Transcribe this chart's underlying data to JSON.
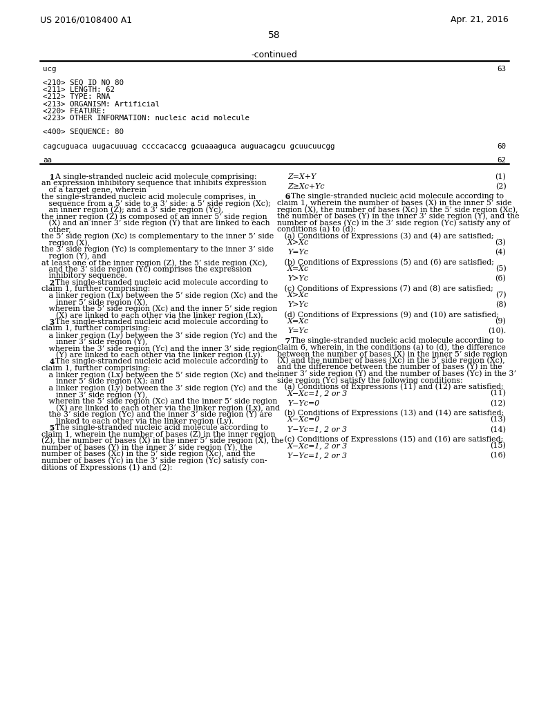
{
  "header_left": "US 2016/0108400 A1",
  "header_right": "Apr. 21, 2016",
  "page_number": "58",
  "continued_label": "-continued",
  "bg_color": "#ffffff",
  "seq_block": [
    [
      "ucg",
      "63"
    ],
    [
      "",
      ""
    ],
    [
      "<210> SEQ ID NO 80",
      ""
    ],
    [
      "<211> LENGTH: 62",
      ""
    ],
    [
      "<212> TYPE: RNA",
      ""
    ],
    [
      "<213> ORGANISM: Artificial",
      ""
    ],
    [
      "<220> FEATURE:",
      ""
    ],
    [
      "<223> OTHER INFORMATION: nucleic acid molecule",
      ""
    ],
    [
      "",
      ""
    ],
    [
      "<400> SEQUENCE: 80",
      ""
    ],
    [
      "",
      ""
    ],
    [
      "cagcuguaca uugacuuuag ccccacaccg gcuaaaguca auguacagcu gcuucuucgg",
      "60"
    ],
    [
      "",
      ""
    ],
    [
      "aa",
      "62"
    ]
  ],
  "left_col": [
    {
      "t": "   1. A single-stranded nucleic acid molecule comprising:",
      "b": true,
      "bn": 4
    },
    {
      "t": "an expression inhibitory sequence that inhibits expression",
      "b": false,
      "ind": 1
    },
    {
      "t": "   of a target gene, wherein",
      "b": false,
      "ind": 1
    },
    {
      "t": "the single-stranded nucleic acid molecule comprises, in",
      "b": false,
      "ind": 0
    },
    {
      "t": "   sequence from a 5’ side to a 3’ side: a 5’ side region (Xc);",
      "b": false,
      "ind": 1
    },
    {
      "t": "   an inner region (Z); and a 3’ side region (Yc),",
      "b": false,
      "ind": 1
    },
    {
      "t": "the inner region (Z) is composed of an inner 5’ side region",
      "b": false,
      "ind": 0
    },
    {
      "t": "   (X) and an inner 3’ side region (Y) that are linked to each",
      "b": false,
      "ind": 1
    },
    {
      "t": "   other,",
      "b": false,
      "ind": 1
    },
    {
      "t": "the 5’ side region (Xc) is complementary to the inner 5’ side",
      "b": false,
      "ind": 0
    },
    {
      "t": "   region (X),",
      "b": false,
      "ind": 1
    },
    {
      "t": "the 3’ side region (Yc) is complementary to the inner 3’ side",
      "b": false,
      "ind": 0
    },
    {
      "t": "   region (Y), and",
      "b": false,
      "ind": 1
    },
    {
      "t": "at least one of the inner region (Z), the 5’ side region (Xc),",
      "b": false,
      "ind": 0
    },
    {
      "t": "   and the 3’ side region (Yc) comprises the expression",
      "b": false,
      "ind": 1
    },
    {
      "t": "   inhibitory sequence.",
      "b": false,
      "ind": 1
    },
    {
      "t": "   2. The single-stranded nucleic acid molecule according to",
      "b": true,
      "bn": 4
    },
    {
      "t": "claim 1, further comprising:",
      "b": false,
      "ind": 0
    },
    {
      "t": "   a linker region (Lx) between the 5’ side region (Xc) and the",
      "b": false,
      "ind": 1
    },
    {
      "t": "      inner 5’ side region (X),",
      "b": false,
      "ind": 2
    },
    {
      "t": "   wherein the 5’ side region (Xc) and the inner 5’ side region",
      "b": false,
      "ind": 1
    },
    {
      "t": "      (X) are linked to each other via the linker region (Lx).",
      "b": false,
      "ind": 2
    },
    {
      "t": "   3. The single-stranded nucleic acid molecule according to",
      "b": true,
      "bn": 4
    },
    {
      "t": "claim 1, further comprising:",
      "b": false,
      "ind": 0
    },
    {
      "t": "   a linker region (Ly) between the 3’ side region (Yc) and the",
      "b": false,
      "ind": 1
    },
    {
      "t": "      inner 3’ side region (Y),",
      "b": false,
      "ind": 2
    },
    {
      "t": "   wherein the 3’ side region (Yc) and the inner 3’ side region",
      "b": false,
      "ind": 1
    },
    {
      "t": "      (Y) are linked to each other via the linker region (Ly).",
      "b": false,
      "ind": 2
    },
    {
      "t": "   4. The single-stranded nucleic acid molecule according to",
      "b": true,
      "bn": 4
    },
    {
      "t": "claim 1, further comprising:",
      "b": false,
      "ind": 0
    },
    {
      "t": "   a linker region (Lx) between the 5’ side region (Xc) and the",
      "b": false,
      "ind": 1
    },
    {
      "t": "      inner 5’ side region (X); and",
      "b": false,
      "ind": 2
    },
    {
      "t": "   a linker region (Ly) between the 3’ side region (Yc) and the",
      "b": false,
      "ind": 1
    },
    {
      "t": "      inner 3’ side region (Y),",
      "b": false,
      "ind": 2
    },
    {
      "t": "   wherein the 5’ side region (Xc) and the inner 5’ side region",
      "b": false,
      "ind": 1
    },
    {
      "t": "      (X) are linked to each other via the linker region (Lx), and",
      "b": false,
      "ind": 2
    },
    {
      "t": "   the 3’ side region (Yc) and the inner 3’ side region (Y) are",
      "b": false,
      "ind": 1
    },
    {
      "t": "      linked to each other via the linker region (Ly).",
      "b": false,
      "ind": 2
    },
    {
      "t": "   5. The single-stranded nucleic acid molecule according to",
      "b": true,
      "bn": 4
    },
    {
      "t": "claim 1, wherein the number of bases (Z) in the inner region",
      "b": false,
      "ind": 0
    },
    {
      "t": "(Z), the number of bases (X) in the inner 5’ side region (X), the",
      "b": false,
      "ind": 0
    },
    {
      "t": "number of bases (Y) in the inner 3’ side region (Y), the",
      "b": false,
      "ind": 0
    },
    {
      "t": "number of bases (Xc) in the 5’ side region (Xc), and the",
      "b": false,
      "ind": 0
    },
    {
      "t": "number of bases (Yc) in the 3’ side region (Yc) satisfy con-",
      "b": false,
      "ind": 0
    },
    {
      "t": "ditions of Expressions (1) and (2):",
      "b": false,
      "ind": 0
    }
  ],
  "right_col": [
    {
      "t": "Z=X+Y",
      "eq": true,
      "num": "(1)",
      "gap_after": true
    },
    {
      "t": "Z≥Xc+Yc",
      "eq": true,
      "num": "(2)",
      "gap_after": true
    },
    {
      "t": "   6. The single-stranded nucleic acid molecule according to",
      "eq": false,
      "num": "",
      "gap_after": false,
      "b": true,
      "bn": 4
    },
    {
      "t": "claim 1, wherein the number of bases (X) in the inner 5’ side",
      "eq": false,
      "num": "",
      "gap_after": false
    },
    {
      "t": "region (X), the number of bases (Xc) in the 5’ side region (Xc),",
      "eq": false,
      "num": "",
      "gap_after": false
    },
    {
      "t": "the number of bases (Y) in the inner 3’ side region (Y), and the",
      "eq": false,
      "num": "",
      "gap_after": false
    },
    {
      "t": "number of bases (Yc) in the 3’ side region (Yc) satisfy any of",
      "eq": false,
      "num": "",
      "gap_after": false
    },
    {
      "t": "conditions (a) to (d):",
      "eq": false,
      "num": "",
      "gap_after": false
    },
    {
      "t": "   (a) Conditions of Expressions (3) and (4) are satisfied;",
      "eq": false,
      "num": "",
      "gap_after": false
    },
    {
      "t": "X>Xc",
      "eq": true,
      "num": "(3)",
      "gap_after": true
    },
    {
      "t": "Y=Yc",
      "eq": true,
      "num": "(4)",
      "gap_after": true
    },
    {
      "t": "   (b) Conditions of Expressions (5) and (6) are satisfied;",
      "eq": false,
      "num": "",
      "gap_after": false
    },
    {
      "t": "X=Xc",
      "eq": true,
      "num": "(5)",
      "gap_after": true
    },
    {
      "t": "Y>Yc",
      "eq": true,
      "num": "(6)",
      "gap_after": true
    },
    {
      "t": "   (c) Conditions of Expressions (7) and (8) are satisfied;",
      "eq": false,
      "num": "",
      "gap_after": false
    },
    {
      "t": "X>Xc",
      "eq": true,
      "num": "(7)",
      "gap_after": true
    },
    {
      "t": "Y>Yc",
      "eq": true,
      "num": "(8)",
      "gap_after": true
    },
    {
      "t": "   (d) Conditions of Expressions (9) and (10) are satisfied;",
      "eq": false,
      "num": "",
      "gap_after": false
    },
    {
      "t": "X=Xc",
      "eq": true,
      "num": "(9)",
      "gap_after": true
    },
    {
      "t": "Y=Yc",
      "eq": true,
      "num": "(10).",
      "gap_after": true
    },
    {
      "t": "   7. The single-stranded nucleic acid molecule according to",
      "eq": false,
      "num": "",
      "gap_after": false,
      "b": true,
      "bn": 4
    },
    {
      "t": "claim 6, wherein, in the conditions (a) to (d), the difference",
      "eq": false,
      "num": "",
      "gap_after": false
    },
    {
      "t": "between the number of bases (X) in the inner 5’ side region",
      "eq": false,
      "num": "",
      "gap_after": false
    },
    {
      "t": "(X) and the number of bases (Xc) in the 5’ side region (Xc),",
      "eq": false,
      "num": "",
      "gap_after": false
    },
    {
      "t": "and the difference between the number of bases (Y) in the",
      "eq": false,
      "num": "",
      "gap_after": false
    },
    {
      "t": "inner 3’ side region (Y) and the number of bases (Yc) in the 3’",
      "eq": false,
      "num": "",
      "gap_after": false
    },
    {
      "t": "side region (Yc) satisfy the following conditions:",
      "eq": false,
      "num": "",
      "gap_after": false
    },
    {
      "t": "   (a) Conditions of Expressions (11) and (12) are satisfied;",
      "eq": false,
      "num": "",
      "gap_after": false
    },
    {
      "t": "X−Xc=1, 2 or 3",
      "eq": true,
      "num": "(11)",
      "gap_after": true
    },
    {
      "t": "Y−Yc=0",
      "eq": true,
      "num": "(12)",
      "gap_after": true
    },
    {
      "t": "   (b) Conditions of Expressions (13) and (14) are satisfied;",
      "eq": false,
      "num": "",
      "gap_after": false
    },
    {
      "t": "X−Xc=0",
      "eq": true,
      "num": "(13)",
      "gap_after": true
    },
    {
      "t": "Y−Yc=1, 2 or 3",
      "eq": true,
      "num": "(14)",
      "gap_after": true
    },
    {
      "t": "   (c) Conditions of Expressions (15) and (16) are satisfied;",
      "eq": false,
      "num": "",
      "gap_after": false
    },
    {
      "t": "X−Xc=1, 2 or 3",
      "eq": true,
      "num": "(15)",
      "gap_after": true
    },
    {
      "t": "Y−Yc=1, 2 or 3",
      "eq": true,
      "num": "(16)",
      "gap_after": true
    }
  ]
}
